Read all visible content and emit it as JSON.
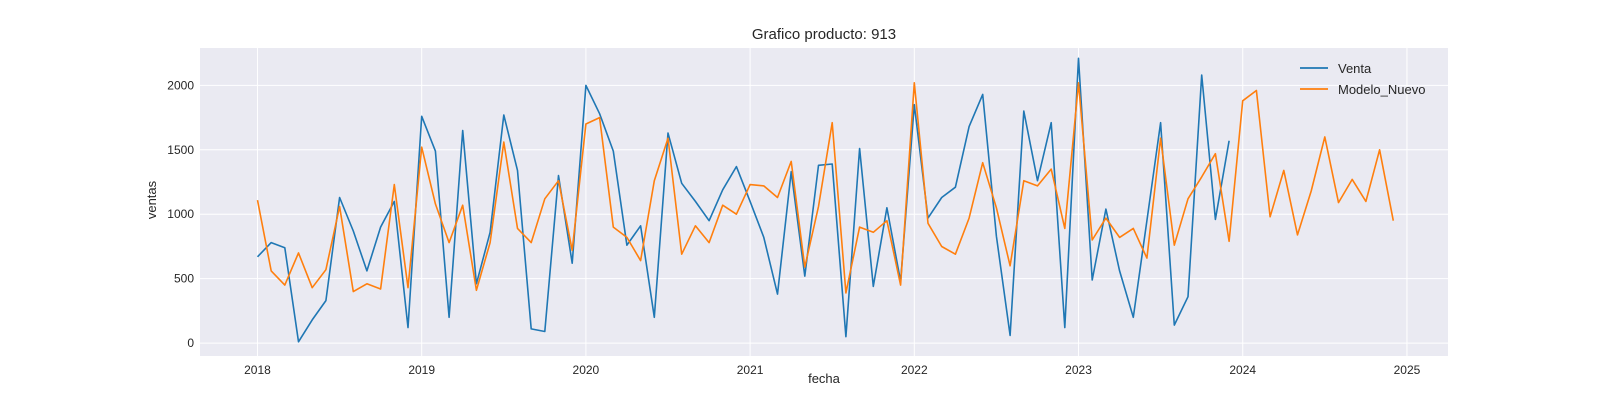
{
  "chart_data": {
    "type": "line",
    "title": "Grafico producto: 913",
    "xlabel": "fecha",
    "ylabel": "ventas",
    "x_range": [
      2017.65,
      2025.25
    ],
    "ylim": [
      -100,
      2290
    ],
    "x_ticks": [
      2018,
      2019,
      2020,
      2021,
      2022,
      2023,
      2024,
      2025
    ],
    "y_ticks": [
      0,
      500,
      1000,
      1500,
      2000
    ],
    "grid": true,
    "legend_position": "top-right",
    "colors": {
      "background": "#eaeaf2",
      "grid": "#ffffff",
      "Venta": "#1f77b4",
      "Modelo_Nuevo": "#ff7f0e"
    },
    "series": [
      {
        "name": "Venta",
        "start": "2018-01",
        "values": [
          670,
          780,
          740,
          10,
          180,
          330,
          1130,
          870,
          560,
          900,
          1100,
          120,
          1760,
          1490,
          200,
          1650,
          460,
          860,
          1770,
          1340,
          110,
          90,
          1300,
          620,
          2000,
          1780,
          1490,
          760,
          910,
          200,
          1630,
          1240,
          1100,
          950,
          1190,
          1370,
          1100,
          820,
          380,
          1330,
          520,
          1380,
          1390,
          50,
          1510,
          440,
          1050,
          480,
          1850,
          970,
          1130,
          1210,
          1680,
          1930,
          830,
          60,
          1800,
          1260,
          1710,
          120,
          2210,
          490,
          1040,
          560,
          200,
          950,
          1710,
          140,
          360,
          2080,
          960,
          1570
        ]
      },
      {
        "name": "Modelo_Nuevo",
        "start": "2018-01",
        "values": [
          1110,
          560,
          450,
          700,
          430,
          570,
          1060,
          400,
          460,
          420,
          1230,
          430,
          1520,
          1080,
          780,
          1070,
          410,
          780,
          1560,
          890,
          780,
          1120,
          1260,
          720,
          1700,
          1750,
          900,
          820,
          640,
          1260,
          1590,
          690,
          910,
          780,
          1070,
          1000,
          1230,
          1220,
          1130,
          1410,
          590,
          1060,
          1710,
          390,
          900,
          860,
          950,
          450,
          2020,
          930,
          750,
          690,
          970,
          1400,
          1050,
          600,
          1260,
          1220,
          1350,
          890,
          2020,
          800,
          970,
          820,
          890,
          660,
          1590,
          760,
          1120,
          1290,
          1470,
          790,
          1880,
          1960,
          980,
          1340,
          840,
          1180,
          1600,
          1090,
          1270,
          1100,
          1500,
          950
        ]
      }
    ]
  }
}
